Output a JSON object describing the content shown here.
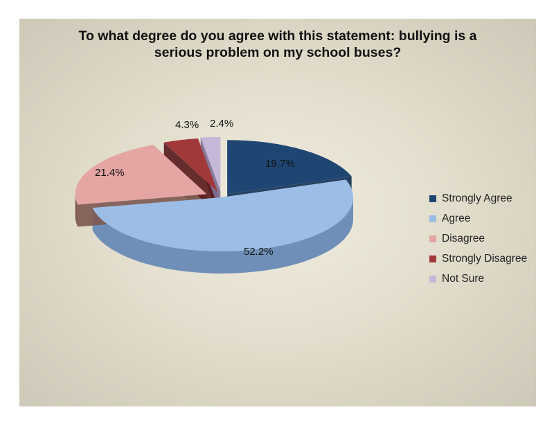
{
  "chart_data": {
    "type": "pie",
    "title": [
      "To what degree do you agree with this statement: bullying is a",
      "serious problem on my school buses?"
    ],
    "slices": [
      {
        "name": "Strongly Agree",
        "value": 19.7,
        "label": "19.7%",
        "color": "#1f4673",
        "side": "#163456"
      },
      {
        "name": "Agree",
        "value": 52.2,
        "label": "52.2%",
        "color": "#9bbde6",
        "side": "#6f8fb8"
      },
      {
        "name": "Disagree",
        "value": 21.4,
        "label": "21.4%",
        "color": "#e4a5a3",
        "side": "#7e5a52"
      },
      {
        "name": "Strongly Disagree",
        "value": 4.3,
        "label": "4.3%",
        "color": "#a1393b",
        "side": "#5a1d1e"
      },
      {
        "name": "Not Sure",
        "value": 2.4,
        "label": "2.4%",
        "color": "#c5b7d8",
        "side": "#7f7094"
      }
    ],
    "legend_position": "right",
    "style": "3d-exploded"
  }
}
